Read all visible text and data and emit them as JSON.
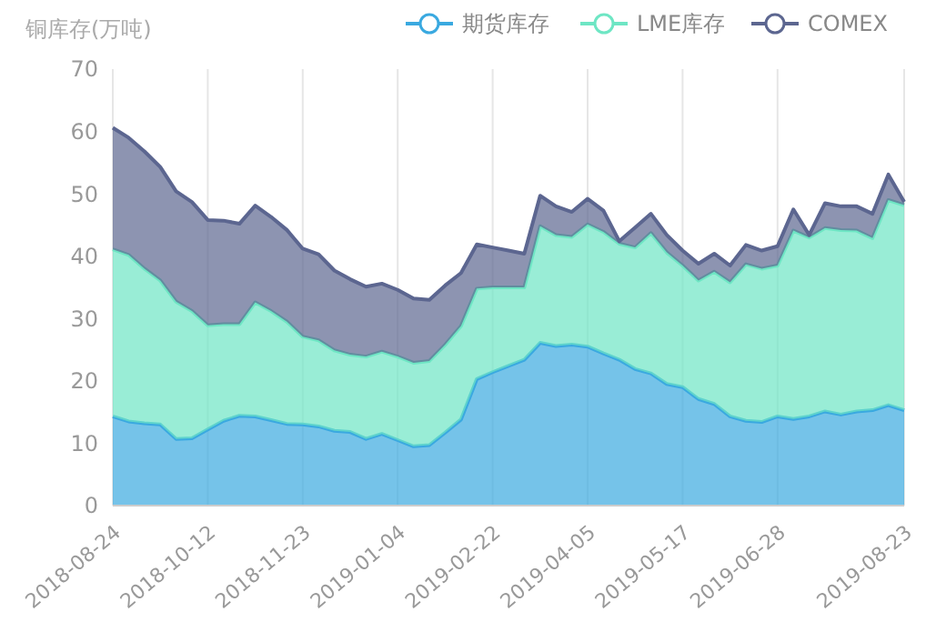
{
  "chart_data": {
    "type": "area",
    "ylabel": "铜库存(万吨)",
    "stacked": true,
    "grid": "x",
    "legend": "top right",
    "ylim": [
      0,
      70
    ],
    "yticks": [
      0,
      10,
      20,
      30,
      40,
      50,
      60,
      70
    ],
    "categories": [
      "2018-08-24",
      null,
      null,
      null,
      null,
      null,
      "2018-10-12",
      null,
      null,
      null,
      null,
      null,
      "2018-11-23",
      null,
      null,
      null,
      null,
      null,
      "2019-01-04",
      null,
      null,
      null,
      null,
      null,
      "2019-02-22",
      null,
      null,
      null,
      null,
      null,
      "2019-04-05",
      null,
      null,
      null,
      null,
      null,
      "2019-05-17",
      null,
      null,
      null,
      null,
      null,
      "2019-06-28",
      null,
      null,
      null,
      null,
      null,
      null,
      null,
      "2019-08-23"
    ],
    "series": [
      {
        "name": "期货库存",
        "color": "#3aa9e0",
        "values": [
          14.3,
          13.5,
          13.2,
          13.0,
          10.7,
          10.8,
          12.2,
          13.6,
          14.4,
          14.3,
          13.7,
          13.1,
          13.0,
          12.7,
          12.0,
          11.8,
          10.7,
          11.5,
          10.5,
          9.5,
          9.7,
          11.7,
          13.8,
          20.3,
          21.4,
          22.4,
          23.4,
          26.1,
          25.6,
          25.8,
          25.5,
          24.4,
          23.4,
          21.9,
          21.2,
          19.5,
          19.0,
          17.1,
          16.3,
          14.3,
          13.6,
          13.4,
          14.3,
          13.9,
          14.3,
          15.1,
          14.6,
          15.1,
          15.3,
          16.1,
          15.3
        ]
      },
      {
        "name": "LME库存",
        "color": "#6ee6c4",
        "values": [
          26.8,
          26.7,
          24.8,
          23.1,
          22.0,
          20.4,
          16.7,
          15.5,
          14.7,
          18.3,
          17.5,
          16.4,
          14.1,
          13.8,
          12.9,
          12.4,
          13.2,
          13.2,
          13.4,
          13.4,
          13.5,
          14.1,
          15.0,
          14.5,
          13.6,
          12.6,
          11.6,
          18.7,
          17.8,
          17.3,
          19.6,
          19.5,
          18.6,
          19.5,
          22.5,
          21.1,
          19.5,
          19.0,
          21.2,
          21.5,
          25.1,
          24.6,
          24.2,
          30.2,
          28.7,
          29.4,
          29.6,
          29.0,
          27.6,
          32.9,
          32.9
        ]
      },
      {
        "name": "COMEX",
        "color": "#5c6690",
        "values": [
          19.5,
          18.8,
          18.8,
          18.2,
          17.7,
          17.5,
          16.9,
          16.6,
          16.1,
          15.5,
          15.1,
          14.7,
          14.1,
          13.8,
          12.8,
          12.1,
          11.2,
          10.9,
          10.7,
          10.3,
          9.8,
          9.5,
          8.5,
          7.1,
          6.4,
          5.9,
          5.4,
          4.9,
          4.6,
          4.0,
          4.1,
          3.4,
          0.4,
          3.2,
          3.1,
          2.8,
          2.4,
          2.7,
          2.9,
          2.7,
          3.1,
          2.9,
          3.1,
          3.4,
          0.4,
          4.0,
          3.8,
          3.9,
          3.9,
          4.1,
          0.5
        ]
      }
    ]
  }
}
